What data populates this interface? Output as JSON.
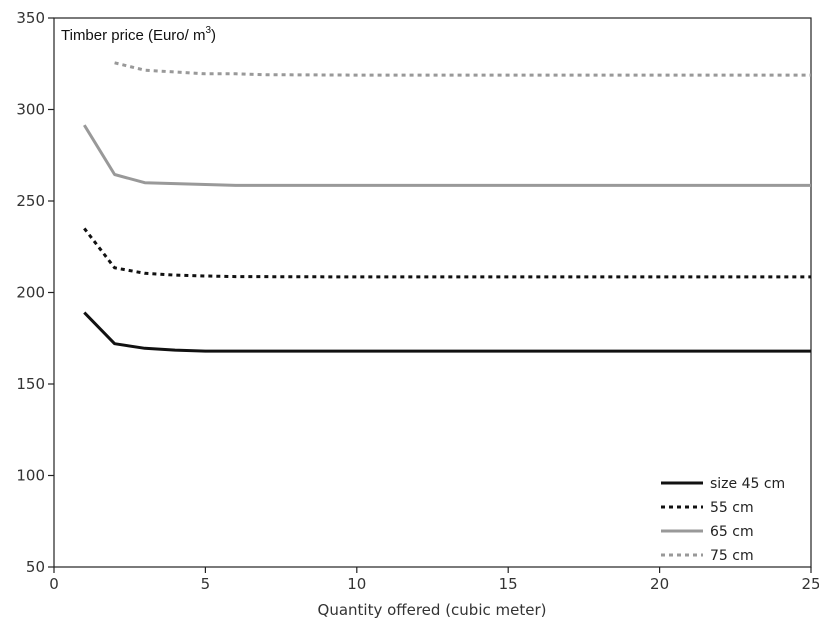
{
  "chart_data": {
    "type": "line",
    "ylabel": "Timber price (Euro/ m",
    "ylabel_superscript": "3",
    "ylabel_suffix": ")",
    "xlabel": "Quantity offered (cubic meter)",
    "xlim": [
      0,
      25
    ],
    "ylim": [
      50,
      350
    ],
    "xticks": [
      0,
      5,
      10,
      15,
      20,
      25
    ],
    "yticks": [
      50,
      100,
      150,
      200,
      250,
      300,
      350
    ],
    "grid": false,
    "legend_position": "bottom-right",
    "series": [
      {
        "name": "size 45 cm",
        "color": "#111111",
        "dash": "solid",
        "points": [
          [
            1,
            189
          ],
          [
            2,
            172
          ],
          [
            3,
            169.5
          ],
          [
            4,
            168.5
          ],
          [
            5,
            168
          ],
          [
            6,
            168
          ],
          [
            10,
            168
          ],
          [
            25,
            168
          ]
        ]
      },
      {
        "name": "55 cm",
        "color": "#111111",
        "dash": "dotted",
        "points": [
          [
            1,
            235
          ],
          [
            2,
            213.5
          ],
          [
            3,
            210.5
          ],
          [
            4,
            209.5
          ],
          [
            5,
            209
          ],
          [
            6,
            208.7
          ],
          [
            10,
            208.5
          ],
          [
            25,
            208.5
          ]
        ]
      },
      {
        "name": "65 cm",
        "color": "#999999",
        "dash": "solid",
        "points": [
          [
            1,
            291.5
          ],
          [
            2,
            264.5
          ],
          [
            3,
            260
          ],
          [
            4,
            259.5
          ],
          [
            5,
            259
          ],
          [
            6,
            258.5
          ],
          [
            10,
            258.5
          ],
          [
            25,
            258.5
          ]
        ]
      },
      {
        "name": "75 cm",
        "color": "#999999",
        "dash": "dotted",
        "points": [
          [
            2,
            325.5
          ],
          [
            3,
            321.5
          ],
          [
            4,
            320.5
          ],
          [
            5,
            319.5
          ],
          [
            6,
            319.5
          ],
          [
            7,
            319
          ],
          [
            10,
            318.8
          ],
          [
            25,
            318.8
          ]
        ]
      }
    ]
  }
}
